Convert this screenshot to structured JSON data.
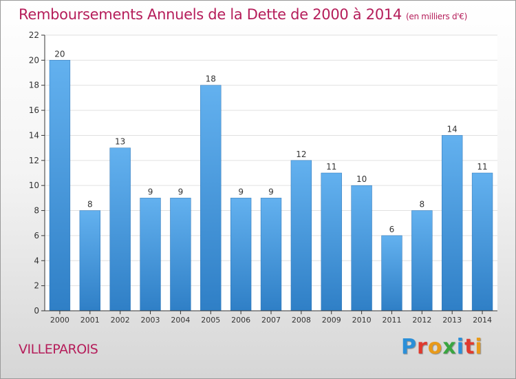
{
  "title": "Remboursements Annuels de la Dette de 2000 à 2014",
  "unit": "(en milliers d'€)",
  "commune": "VILLEPAROIS",
  "logo": {
    "text": "Proxiti",
    "letter_colors": [
      "#2b8fd8",
      "#e03a2e",
      "#e89a1a",
      "#3aa541",
      "#2b8fd8",
      "#e03a2e",
      "#e89a1a"
    ]
  },
  "colors": {
    "title": "#b51d5a",
    "bar_top": "#63b1ef",
    "bar_bottom": "#2f7fc6",
    "axis": "#333333",
    "grid": "#e0e0e0"
  },
  "chart_data": {
    "type": "bar",
    "categories": [
      "2000",
      "2001",
      "2002",
      "2003",
      "2004",
      "2005",
      "2006",
      "2007",
      "2008",
      "2009",
      "2010",
      "2011",
      "2012",
      "2013",
      "2014"
    ],
    "values": [
      20,
      8,
      13,
      9,
      9,
      18,
      9,
      9,
      12,
      11,
      10,
      6,
      8,
      14,
      11
    ],
    "ylim": [
      0,
      22
    ],
    "yticks": [
      0,
      2,
      4,
      6,
      8,
      10,
      12,
      14,
      16,
      18,
      20,
      22
    ],
    "grid": true,
    "xlabel": "",
    "ylabel": ""
  }
}
